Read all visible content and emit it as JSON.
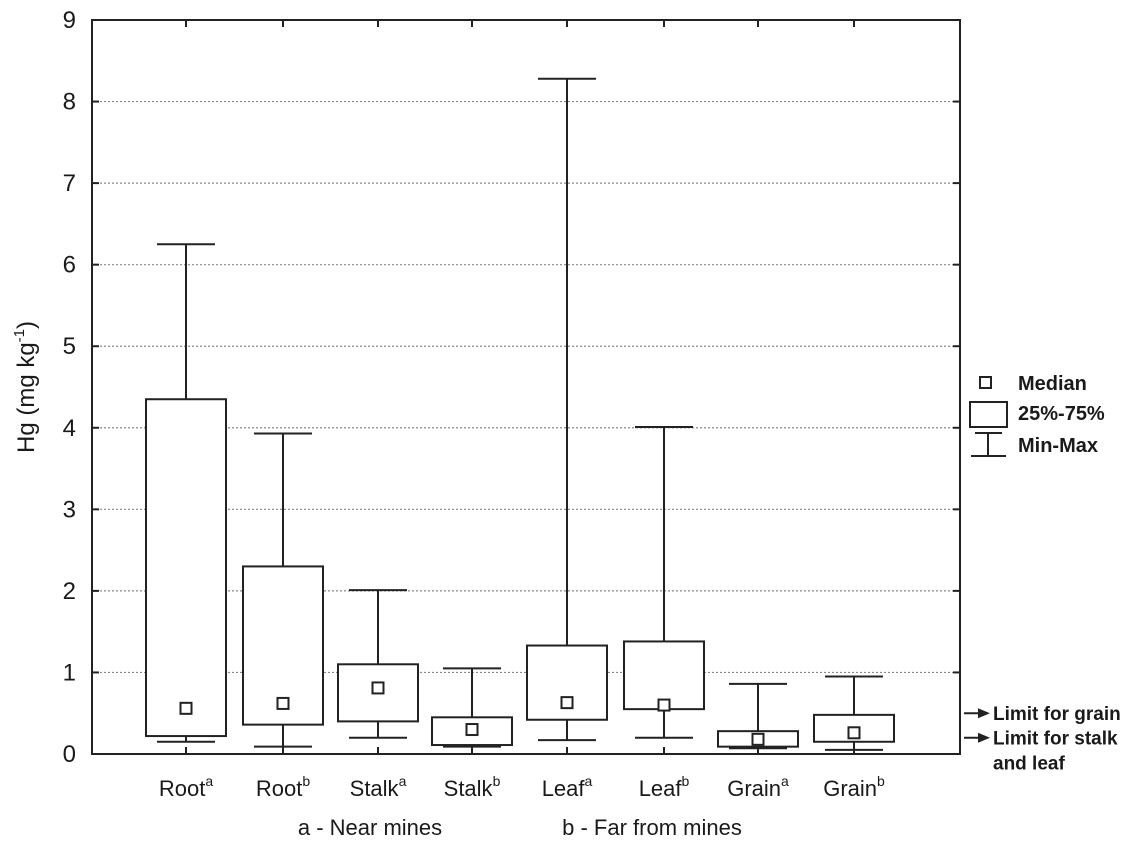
{
  "chart_data": {
    "type": "box",
    "ylabel": "Hg (mg kg",
    "ylabel_sup": "-1",
    "ylabel_end": ")",
    "ylim": [
      0,
      9
    ],
    "yticks": [
      "0",
      "1",
      "2",
      "3",
      "4",
      "5",
      "6",
      "7",
      "8",
      "9"
    ],
    "grid": true,
    "categories": [
      {
        "base": "Root",
        "sup": "a"
      },
      {
        "base": "Root",
        "sup": "b"
      },
      {
        "base": "Stalk",
        "sup": "a"
      },
      {
        "base": "Stalk",
        "sup": "b"
      },
      {
        "base": "Leaf",
        "sup": "a"
      },
      {
        "base": "Leaf",
        "sup": "b"
      },
      {
        "base": "Grain",
        "sup": "a"
      },
      {
        "base": "Grain",
        "sup": "b"
      }
    ],
    "boxes": [
      {
        "min": 0.15,
        "q1": 0.22,
        "median": 0.56,
        "q3": 4.35,
        "max": 6.25
      },
      {
        "min": 0.09,
        "q1": 0.36,
        "median": 0.62,
        "q3": 2.3,
        "max": 3.93
      },
      {
        "min": 0.2,
        "q1": 0.4,
        "median": 0.81,
        "q3": 1.1,
        "max": 2.01
      },
      {
        "min": 0.09,
        "q1": 0.11,
        "median": 0.3,
        "q3": 0.45,
        "max": 1.05
      },
      {
        "min": 0.17,
        "q1": 0.42,
        "median": 0.63,
        "q3": 1.33,
        "max": 8.28
      },
      {
        "min": 0.2,
        "q1": 0.55,
        "median": 0.6,
        "q3": 1.38,
        "max": 4.01
      },
      {
        "min": 0.07,
        "q1": 0.09,
        "median": 0.18,
        "q3": 0.28,
        "max": 0.86
      },
      {
        "min": 0.05,
        "q1": 0.15,
        "median": 0.26,
        "q3": 0.48,
        "max": 0.95
      }
    ],
    "legend": {
      "position": "right",
      "items": [
        "Median",
        "25%-75%",
        "Min-Max"
      ]
    },
    "limits": [
      {
        "label": "Limit for grain",
        "value": 0.5
      },
      {
        "label": "Limit for stalk and leaf",
        "label_lines": [
          "Limit for stalk",
          "and leaf"
        ],
        "value": 0.2
      }
    ],
    "group_notes": [
      "a - Near mines",
      "b - Far from mines"
    ]
  }
}
